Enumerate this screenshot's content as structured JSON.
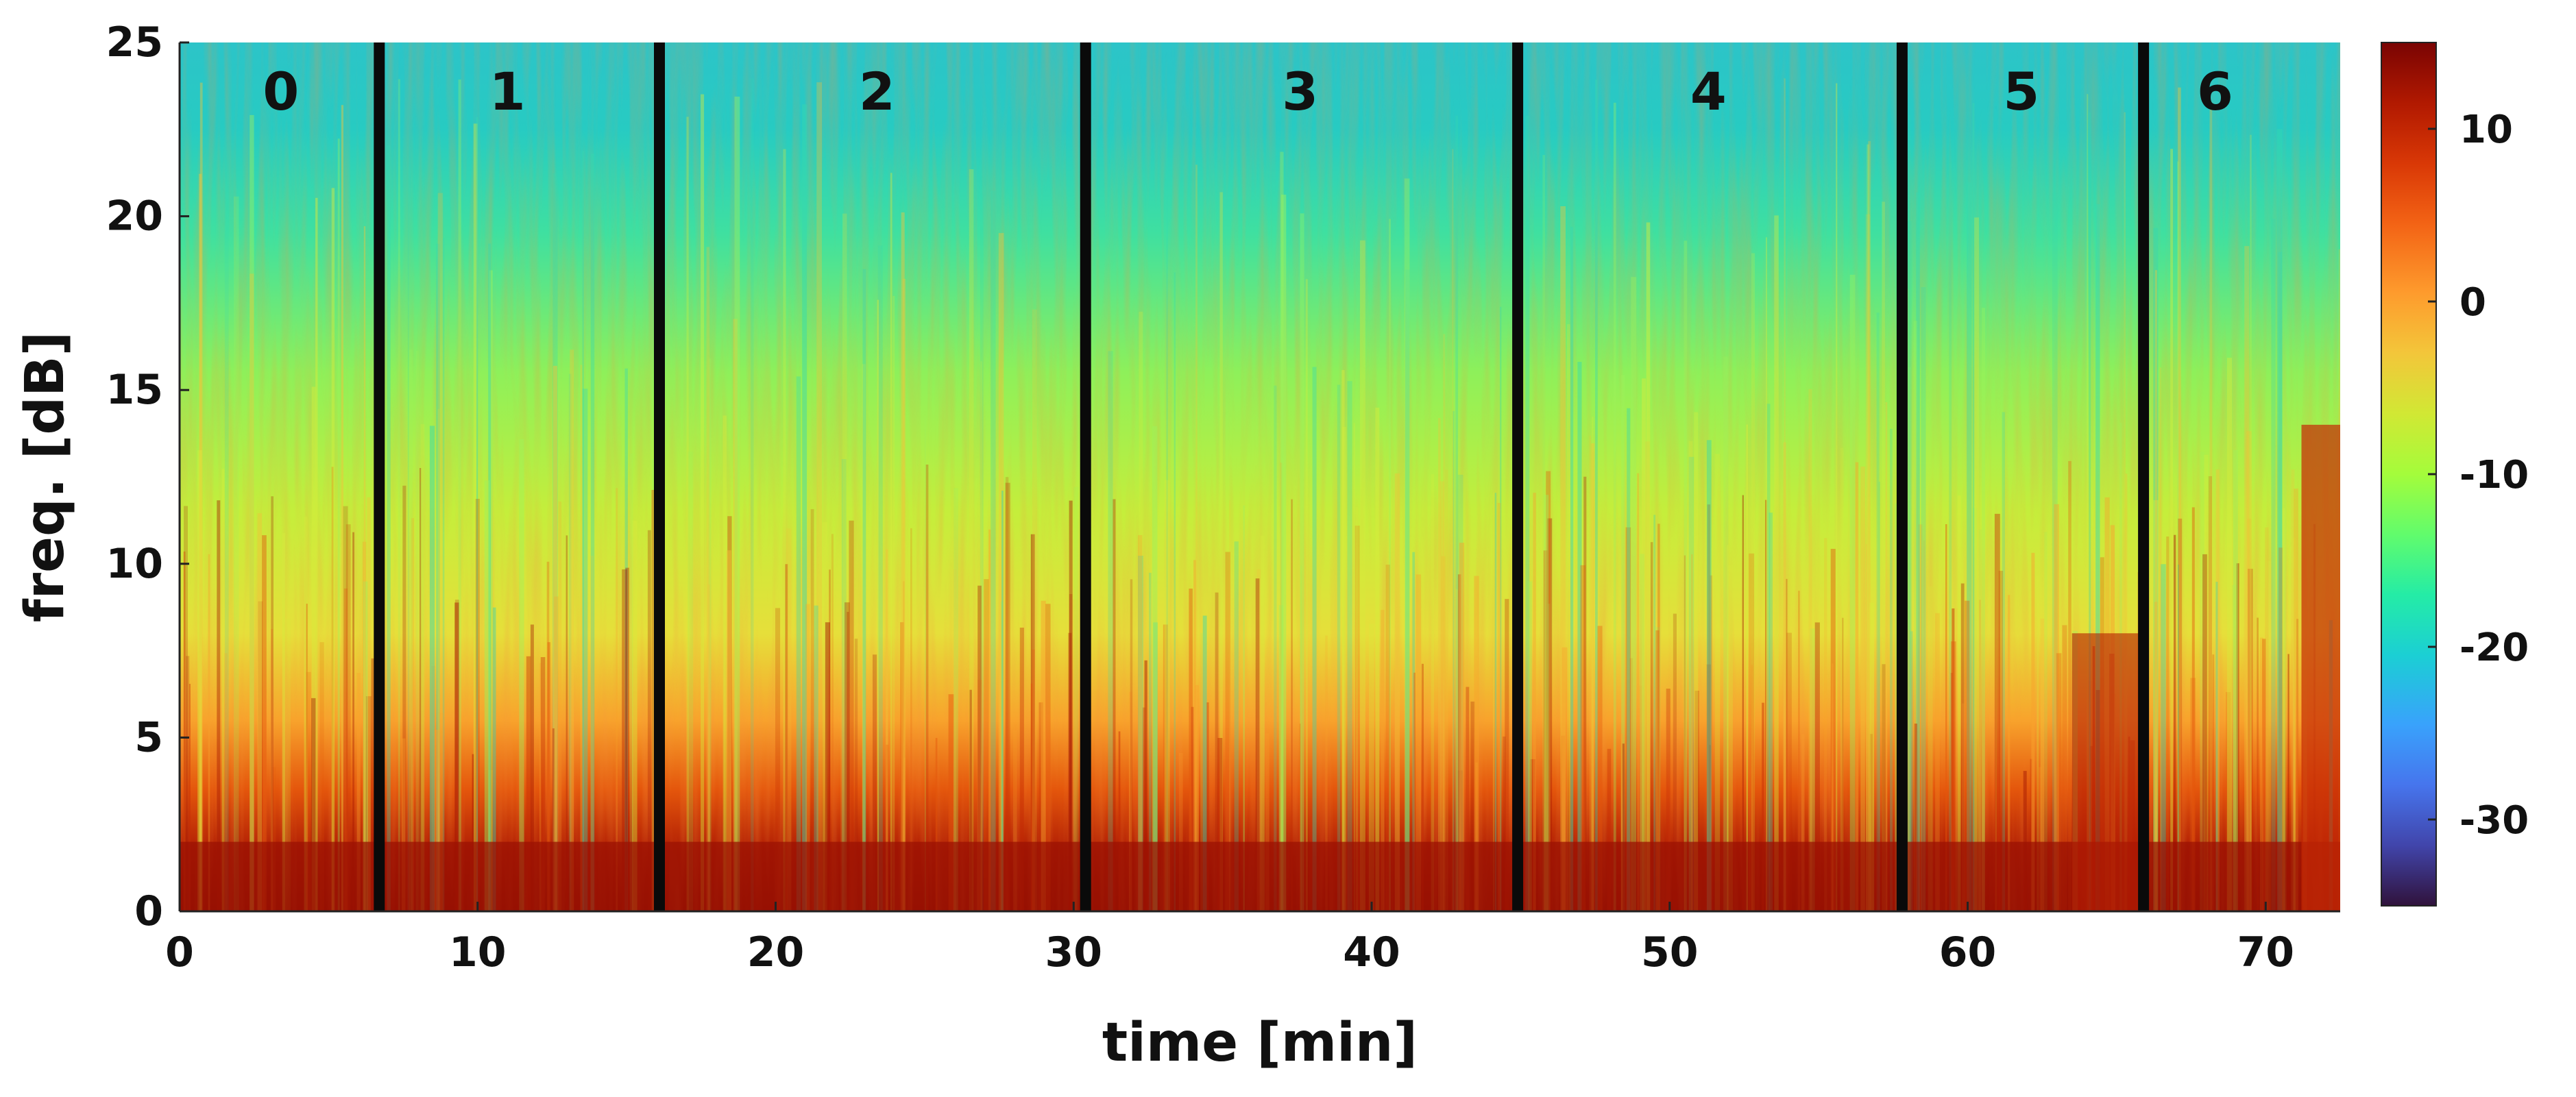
{
  "chart_data": {
    "type": "heatmap",
    "title": "",
    "xlabel": "time [min]",
    "ylabel": "freq. [dB]",
    "xlim": [
      0,
      72.5
    ],
    "ylim": [
      0,
      25
    ],
    "x_ticks": [
      0,
      10,
      20,
      30,
      40,
      50,
      60,
      70
    ],
    "y_ticks": [
      0,
      5,
      10,
      15,
      20,
      25
    ],
    "colorbar": {
      "range": [
        -35,
        15
      ],
      "ticks": [
        10,
        0,
        -10,
        -20,
        -30
      ],
      "colormap": "turbo"
    },
    "segment_boundaries": [
      6.7,
      16.1,
      30.4,
      44.9,
      57.8,
      65.9
    ],
    "segments": [
      {
        "label": "0",
        "x": 3.4
      },
      {
        "label": "1",
        "x": 11.0
      },
      {
        "label": "2",
        "x": 23.4
      },
      {
        "label": "3",
        "x": 37.6
      },
      {
        "label": "4",
        "x": 51.3
      },
      {
        "label": "5",
        "x": 61.8
      },
      {
        "label": "6",
        "x": 68.3
      }
    ]
  }
}
